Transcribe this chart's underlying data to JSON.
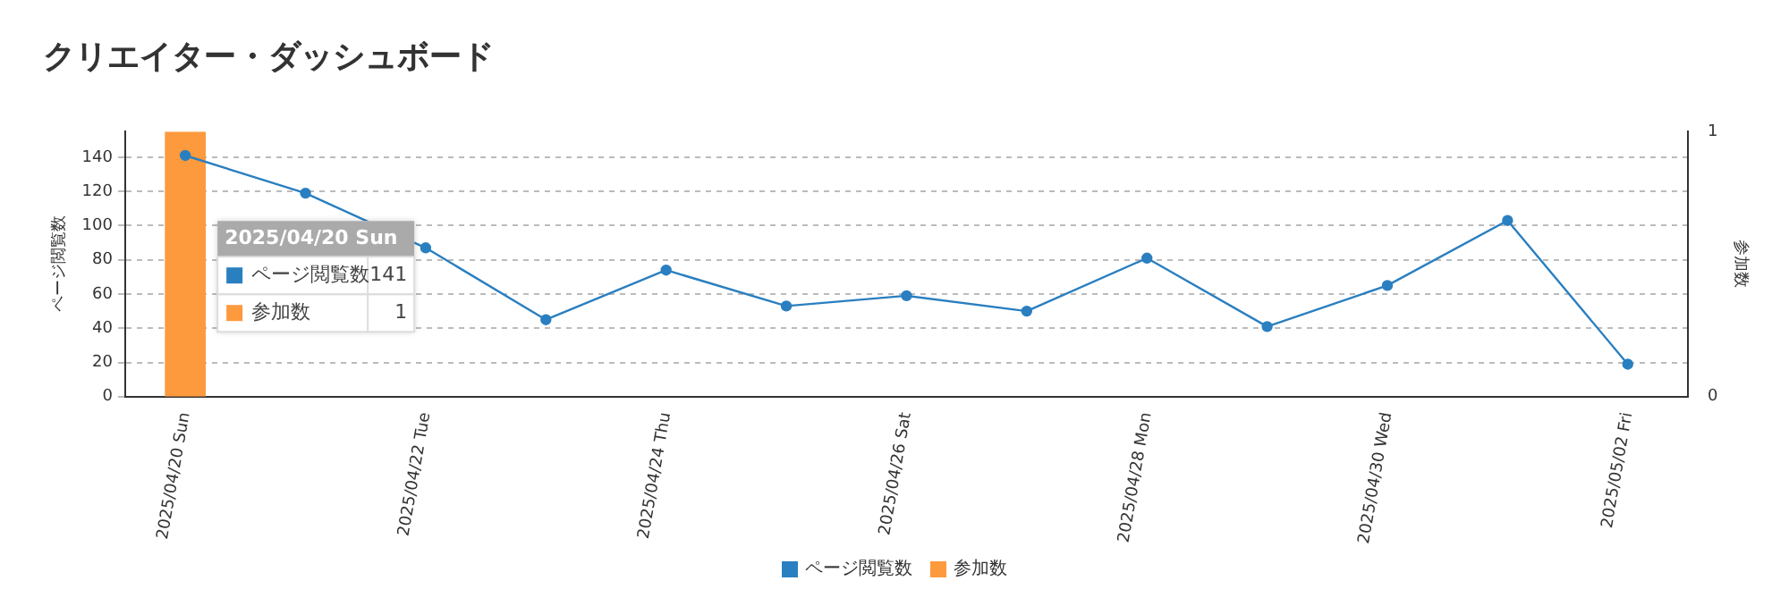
{
  "chart_data": {
    "type": "line",
    "title": "クリエイター・ダッシュボード",
    "ylabel": "ページ閲覧数",
    "y2label": "参加数",
    "categories": [
      "2025/04/20 Sun",
      null,
      "2025/04/22 Tue",
      null,
      "2025/04/24 Thu",
      null,
      "2025/04/26 Sat",
      null,
      "2025/04/28 Mon",
      null,
      "2025/04/30 Wed",
      null,
      "2025/05/02 Fri"
    ],
    "series": [
      {
        "name": "ページ閲覧数",
        "color": "#2a7fc0",
        "values": [
          141,
          119,
          87,
          45,
          74,
          53,
          59,
          50,
          81,
          41,
          65,
          103,
          19
        ]
      },
      {
        "name": "参加数",
        "type": "bar",
        "axis": "y2",
        "color": "#fd9a3e",
        "values": [
          1,
          0,
          0,
          0,
          0,
          0,
          0,
          0,
          0,
          0,
          0,
          0,
          0
        ]
      }
    ],
    "ylim": [
      0,
      155
    ],
    "yticks": [
      0,
      20,
      40,
      60,
      80,
      100,
      120,
      140
    ],
    "y2lim": [
      0,
      1
    ],
    "y2ticks": [
      0,
      1
    ],
    "grid": "y",
    "legend": "bottom",
    "marker": "circle",
    "line_style": "solid",
    "annotations": [
      "2025/04/20 Sun",
      "141",
      "1"
    ]
  }
}
